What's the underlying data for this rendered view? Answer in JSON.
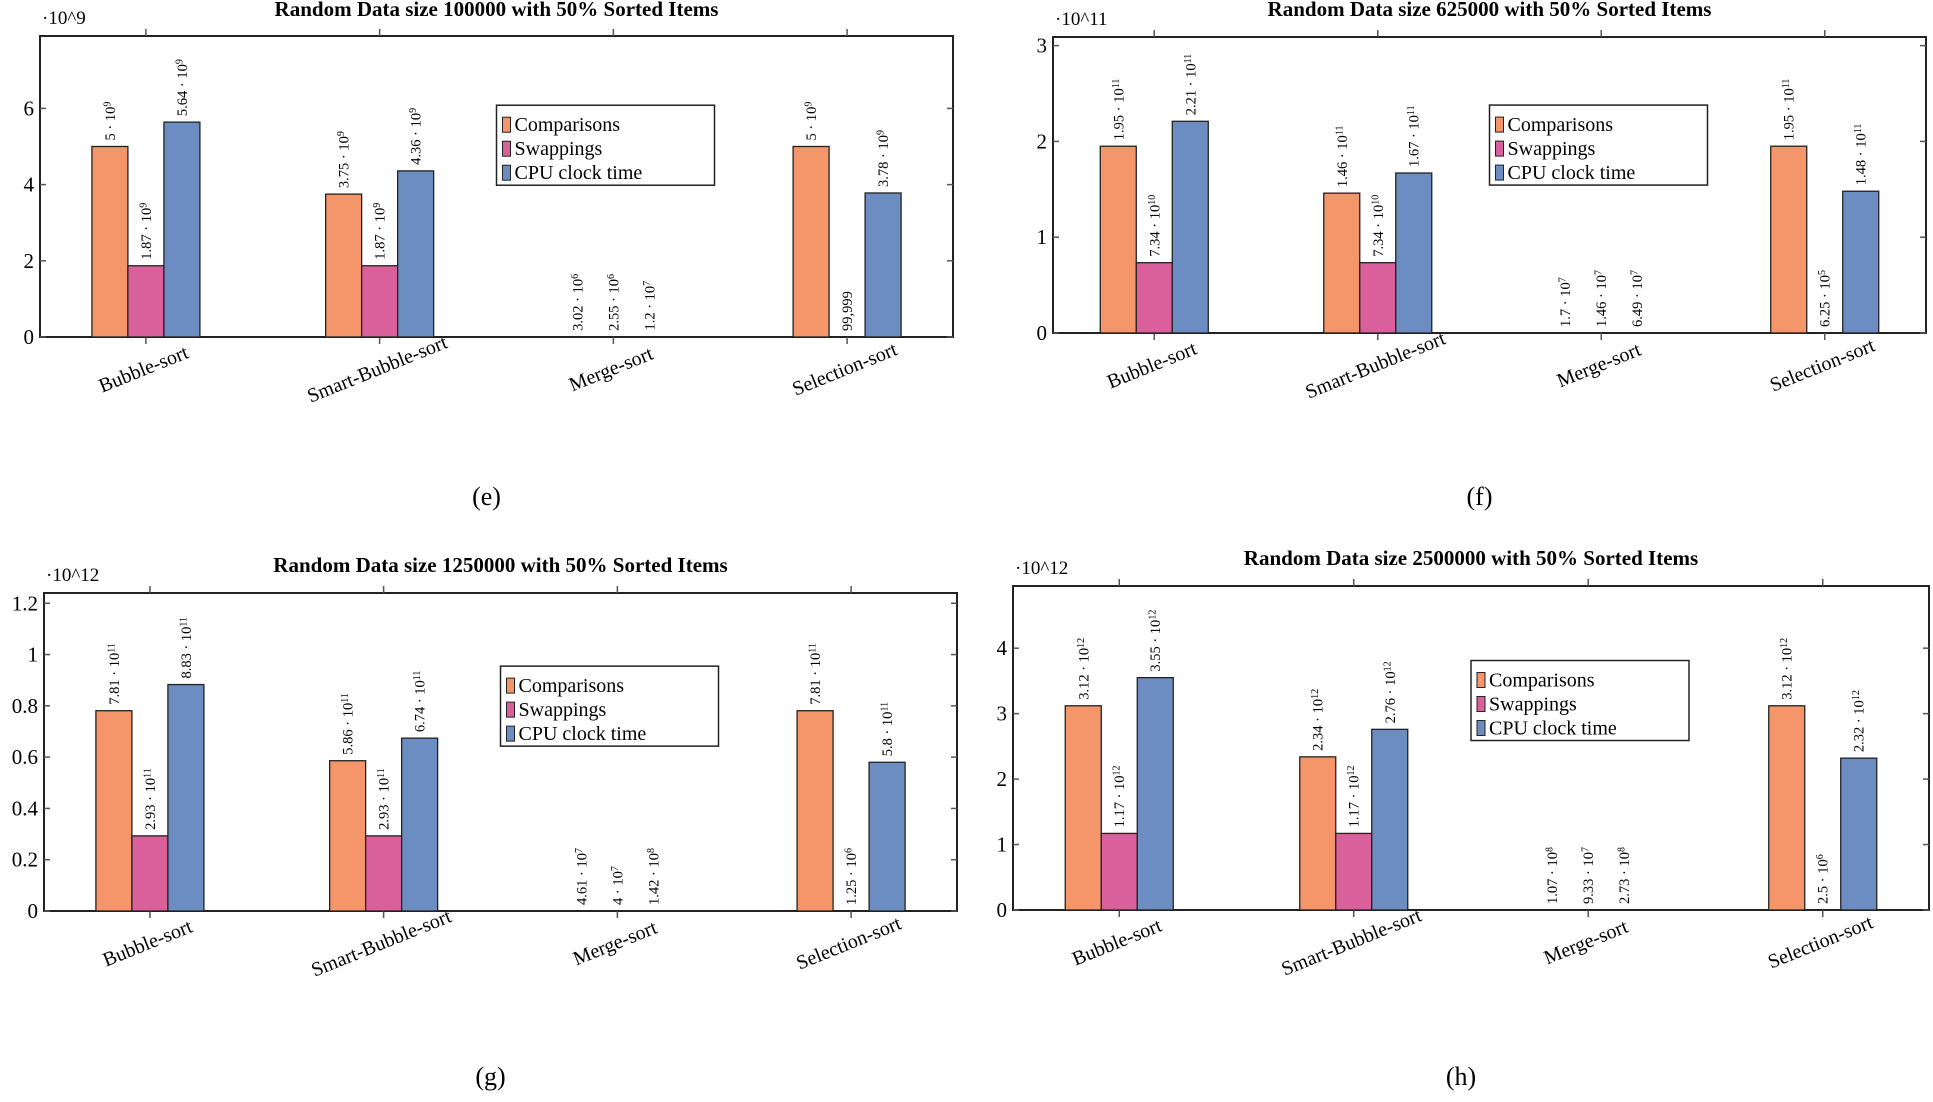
{
  "colors": {
    "comparisons": "#f5956a",
    "swappings": "#d9609a",
    "cpu": "#6b8dc1"
  },
  "chart_data": [
    {
      "type": "bar",
      "caption": "(e)",
      "title": "Random Data size 100000 with 50% Sorted Items",
      "multiplier": "·10^9",
      "categories": [
        "Bubble-sort",
        "Smart-Bubble-sort",
        "Merge-sort",
        "Selection-sort"
      ],
      "yticks": [
        "0",
        "2",
        "4",
        "6"
      ],
      "ylim": [
        0,
        7.9
      ],
      "yscale": 1000000000.0,
      "legend": "top-center",
      "series": [
        {
          "name": "Comparisons",
          "values": [
            5000000000.0,
            3750000000.0,
            3020000.0,
            5000000000.0
          ],
          "labels": [
            "5 · 10^9",
            "3.75 · 10^9",
            "3.02 · 10^6",
            "5 · 10^9"
          ]
        },
        {
          "name": "Swappings",
          "values": [
            1870000000.0,
            1870000000.0,
            2550000.0,
            99999
          ],
          "labels": [
            "1.87 · 10^9",
            "1.87 · 10^9",
            "2.55 · 10^6",
            "99,999"
          ]
        },
        {
          "name": "CPU clock time",
          "values": [
            5640000000.0,
            4360000000.0,
            12000000.0,
            3780000000.0
          ],
          "labels": [
            "5.64 · 10^9",
            "4.36 · 10^9",
            "1.2 · 10^7",
            "3.78 · 10^9"
          ]
        }
      ]
    },
    {
      "type": "bar",
      "caption": "(f)",
      "title": "Random Data size 625000 with 50% Sorted Items",
      "multiplier": "·10^11",
      "categories": [
        "Bubble-sort",
        "Smart-Bubble-sort",
        "Merge-sort",
        "Selection-sort"
      ],
      "yticks": [
        "0",
        "1",
        "2",
        "3"
      ],
      "ylim": [
        0,
        3.09
      ],
      "yscale": 100000000000.0,
      "legend": "top-center",
      "series": [
        {
          "name": "Comparisons",
          "values": [
            195000000000.0,
            146000000000.0,
            17000000.0,
            195000000000.0
          ],
          "labels": [
            "1.95 · 10^11",
            "1.46 · 10^11",
            "1.7 · 10^7",
            "1.95 · 10^11"
          ]
        },
        {
          "name": "Swappings",
          "values": [
            73400000000.0,
            73400000000.0,
            14600000.0,
            625000.0
          ],
          "labels": [
            "7.34 · 10^10",
            "7.34 · 10^10",
            "1.46 · 10^7",
            "6.25 · 10^5"
          ]
        },
        {
          "name": "CPU clock time",
          "values": [
            221000000000.0,
            167000000000.0,
            64900000.0,
            148000000000.0
          ],
          "labels": [
            "2.21 · 10^11",
            "1.67 · 10^11",
            "6.49 · 10^7",
            "1.48 · 10^11"
          ]
        }
      ]
    },
    {
      "type": "bar",
      "caption": "(g)",
      "title": "Random Data size 1250000 with 50% Sorted Items",
      "multiplier": "·10^12",
      "categories": [
        "Bubble-sort",
        "Smart-Bubble-sort",
        "Merge-sort",
        "Selection-sort"
      ],
      "yticks": [
        "0",
        "0.2",
        "0.4",
        "0.6",
        "0.8",
        "1",
        "1.2"
      ],
      "ylim": [
        0,
        1.24
      ],
      "yscale": 1000000000000.0,
      "legend": "top-center",
      "series": [
        {
          "name": "Comparisons",
          "values": [
            781000000000.0,
            586000000000.0,
            46100000.0,
            781000000000.0
          ],
          "labels": [
            "7.81 · 10^11",
            "5.86 · 10^11",
            "4.61 · 10^7",
            "7.81 · 10^11"
          ]
        },
        {
          "name": "Swappings",
          "values": [
            293000000000.0,
            293000000000.0,
            40000000.0,
            1250000.0
          ],
          "labels": [
            "2.93 · 10^11",
            "2.93 · 10^11",
            "4 · 10^7",
            "1.25 · 10^6"
          ]
        },
        {
          "name": "CPU clock time",
          "values": [
            883000000000.0,
            674000000000.0,
            142000000.0,
            580000000000.0
          ],
          "labels": [
            "8.83 · 10^11",
            "6.74 · 10^11",
            "1.42 · 10^8",
            "5.8 · 10^11"
          ]
        }
      ]
    },
    {
      "type": "bar",
      "caption": "(h)",
      "title": "Random Data size 2500000 with 50% Sorted Items",
      "multiplier": "·10^12",
      "categories": [
        "Bubble-sort",
        "Smart-Bubble-sort",
        "Merge-sort",
        "Selection-sort"
      ],
      "yticks": [
        "0",
        "1",
        "2",
        "3",
        "4"
      ],
      "ylim": [
        0,
        4.95
      ],
      "yscale": 1000000000000.0,
      "legend": "top-center",
      "series": [
        {
          "name": "Comparisons",
          "values": [
            3120000000000.0,
            2340000000000.0,
            107000000.0,
            3120000000000.0
          ],
          "labels": [
            "3.12 · 10^12",
            "2.34 · 10^12",
            "1.07 · 10^8",
            "3.12 · 10^12"
          ]
        },
        {
          "name": "Swappings",
          "values": [
            1170000000000.0,
            1170000000000.0,
            93300000.0,
            2500000.0
          ],
          "labels": [
            "1.17 · 10^12",
            "1.17 · 10^12",
            "9.33 · 10^7",
            "2.5 · 10^6"
          ]
        },
        {
          "name": "CPU clock time",
          "values": [
            3550000000000.0,
            2760000000000.0,
            273000000.0,
            2320000000000.0
          ],
          "labels": [
            "3.55 · 10^12",
            "2.76 · 10^12",
            "2.73 · 10^8",
            "2.32 · 10^12"
          ]
        }
      ]
    }
  ]
}
